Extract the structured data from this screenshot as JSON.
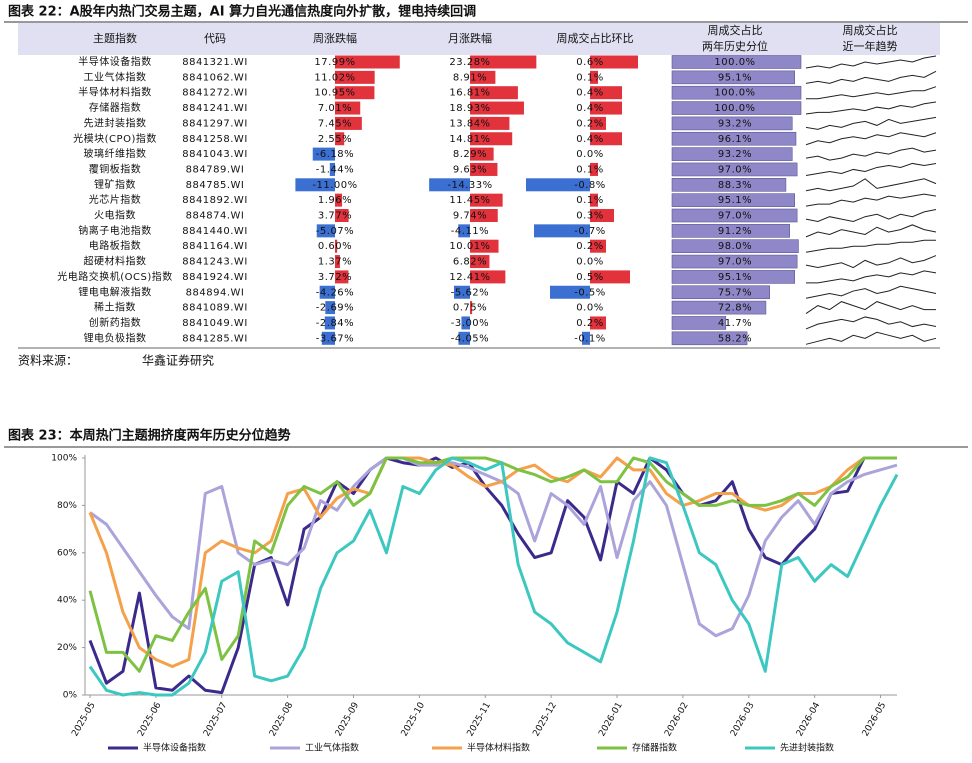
{
  "title": "图表 22：A股年内热门交易主题，AI 算力自光通信热度向外扩散，锂电持续回调",
  "table": {
    "columns": [
      [
        "主题指数"
      ],
      [
        "代码"
      ],
      [
        "周涨跌幅"
      ],
      [
        "月涨跌幅"
      ],
      [
        "周成交占比环比"
      ],
      [
        "周成交占比",
        "两年历史分位"
      ],
      [
        "周成交占比",
        "近一年趋势"
      ]
    ],
    "positive_color": "#e2323c",
    "negative_color": "#3b6fd1",
    "percentile_color": "#8f88c8",
    "trend_color": "#222222",
    "rows": [
      {
        "name": "半导体设备指数",
        "code": "8841321.WI",
        "week": 17.99,
        "week_label": "17.99%",
        "month": 23.28,
        "month_label": "23.28%",
        "turnover_change": 0.6,
        "turnover_change_label": "0.6%",
        "percentile": 100.0,
        "percentile_label": "100.0%",
        "trend": [
          3,
          4,
          3,
          5,
          4,
          6,
          5,
          6,
          7,
          6,
          8,
          9
        ]
      },
      {
        "name": "工业气体指数",
        "code": "8841062.WI",
        "week": 11.02,
        "week_label": "11.02%",
        "month": 8.91,
        "month_label": "8.91%",
        "turnover_change": 0.1,
        "turnover_change_label": "0.1%",
        "percentile": 95.1,
        "percentile_label": "95.1%",
        "trend": [
          2,
          3,
          2,
          4,
          3,
          5,
          4,
          3,
          5,
          6,
          5,
          8
        ]
      },
      {
        "name": "半导体材料指数",
        "code": "8841272.WI",
        "week": 10.95,
        "week_label": "10.95%",
        "month": 16.81,
        "month_label": "16.81%",
        "turnover_change": 0.4,
        "turnover_change_label": "0.4%",
        "percentile": 100.0,
        "percentile_label": "100.0%",
        "trend": [
          3,
          3,
          4,
          5,
          4,
          5,
          6,
          5,
          6,
          7,
          7,
          9
        ]
      },
      {
        "name": "存储器指数",
        "code": "8841241.WI",
        "week": 7.01,
        "week_label": "7.01%",
        "month": 18.93,
        "month_label": "18.93%",
        "turnover_change": 0.4,
        "turnover_change_label": "0.4%",
        "percentile": 100.0,
        "percentile_label": "100.0%",
        "trend": [
          2,
          3,
          3,
          4,
          5,
          4,
          6,
          5,
          7,
          6,
          8,
          9
        ]
      },
      {
        "name": "先进封装指数",
        "code": "8841297.WI",
        "week": 7.45,
        "week_label": "7.45%",
        "month": 13.84,
        "month_label": "13.84%",
        "turnover_change": 0.2,
        "turnover_change_label": "0.2%",
        "percentile": 93.2,
        "percentile_label": "93.2%",
        "trend": [
          3,
          2,
          4,
          3,
          5,
          6,
          4,
          7,
          5,
          6,
          7,
          8
        ]
      },
      {
        "name": "光模块(CPO)指数",
        "code": "8841258.WI",
        "week": 2.55,
        "week_label": "2.55%",
        "month": 14.81,
        "month_label": "14.81%",
        "turnover_change": 0.4,
        "turnover_change_label": "0.4%",
        "percentile": 96.1,
        "percentile_label": "96.1%",
        "trend": [
          2,
          4,
          3,
          5,
          6,
          5,
          7,
          6,
          8,
          7,
          6,
          8
        ]
      },
      {
        "name": "玻璃纤维指数",
        "code": "8841043.WI",
        "week": -6.18,
        "week_label": "-6.18%",
        "month": 8.29,
        "month_label": "8.29%",
        "turnover_change": 0.0,
        "turnover_change_label": "0.0%",
        "percentile": 93.2,
        "percentile_label": "93.2%",
        "trend": [
          3,
          4,
          2,
          3,
          5,
          4,
          6,
          5,
          7,
          8,
          6,
          7
        ]
      },
      {
        "name": "覆铜板指数",
        "code": "884789.WI",
        "week": -1.44,
        "week_label": "-1.44%",
        "month": 9.63,
        "month_label": "9.63%",
        "turnover_change": 0.1,
        "turnover_change_label": "0.1%",
        "percentile": 97.0,
        "percentile_label": "97.0%",
        "trend": [
          2,
          3,
          4,
          3,
          5,
          4,
          6,
          7,
          6,
          8,
          7,
          8
        ]
      },
      {
        "name": "锂矿指数",
        "code": "884785.WI",
        "week": -11.0,
        "week_label": "-11.00%",
        "month": -14.33,
        "month_label": "-14.33%",
        "turnover_change": -0.8,
        "turnover_change_label": "-0.8%",
        "percentile": 88.3,
        "percentile_label": "88.3%",
        "trend": [
          3,
          4,
          3,
          4,
          5,
          8,
          4,
          5,
          6,
          7,
          8,
          6
        ]
      },
      {
        "name": "光芯片指数",
        "code": "8841892.WI",
        "week": 1.96,
        "week_label": "1.96%",
        "month": 11.45,
        "month_label": "11.45%",
        "turnover_change": 0.1,
        "turnover_change_label": "0.1%",
        "percentile": 95.1,
        "percentile_label": "95.1%",
        "trend": [
          2,
          3,
          3,
          5,
          4,
          6,
          5,
          7,
          6,
          7,
          8,
          7
        ]
      },
      {
        "name": "火电指数",
        "code": "884874.WI",
        "week": 3.77,
        "week_label": "3.77%",
        "month": 9.74,
        "month_label": "9.74%",
        "turnover_change": 0.3,
        "turnover_change_label": "0.3%",
        "percentile": 97.0,
        "percentile_label": "97.0%",
        "trend": [
          4,
          3,
          5,
          4,
          3,
          5,
          6,
          4,
          6,
          5,
          7,
          8
        ]
      },
      {
        "name": "钠离子电池指数",
        "code": "8841440.WI",
        "week": -5.07,
        "week_label": "-5.07%",
        "month": -4.11,
        "month_label": "-4.11%",
        "turnover_change": -0.7,
        "turnover_change_label": "-0.7%",
        "percentile": 91.2,
        "percentile_label": "91.2%",
        "trend": [
          3,
          5,
          4,
          6,
          5,
          4,
          7,
          5,
          6,
          8,
          6,
          5
        ]
      },
      {
        "name": "电路板指数",
        "code": "8841164.WI",
        "week": 0.6,
        "week_label": "0.60%",
        "month": 10.01,
        "month_label": "10.01%",
        "turnover_change": 0.2,
        "turnover_change_label": "0.2%",
        "percentile": 98.0,
        "percentile_label": "98.0%",
        "trend": [
          2,
          3,
          4,
          4,
          5,
          5,
          6,
          6,
          7,
          7,
          8,
          8
        ]
      },
      {
        "name": "超硬材料指数",
        "code": "8841243.WI",
        "week": 1.37,
        "week_label": "1.37%",
        "month": 6.82,
        "month_label": "6.82%",
        "turnover_change": 0.0,
        "turnover_change_label": "0.0%",
        "percentile": 97.0,
        "percentile_label": "97.0%",
        "trend": [
          4,
          3,
          4,
          5,
          3,
          6,
          4,
          5,
          7,
          5,
          6,
          8
        ]
      },
      {
        "name": "光电路交换机(OCS)指数",
        "code": "8841924.WI",
        "week": 3.72,
        "week_label": "3.72%",
        "month": 12.41,
        "month_label": "12.41%",
        "turnover_change": 0.5,
        "turnover_change_label": "0.5%",
        "percentile": 95.1,
        "percentile_label": "95.1%",
        "trend": [
          2,
          2,
          3,
          4,
          3,
          5,
          6,
          5,
          7,
          6,
          8,
          7
        ]
      },
      {
        "name": "锂电电解液指数",
        "code": "884894.WI",
        "week": -4.26,
        "week_label": "-4.26%",
        "month": -5.62,
        "month_label": "-5.62%",
        "turnover_change": -0.5,
        "turnover_change_label": "-0.5%",
        "percentile": 75.7,
        "percentile_label": "75.7%",
        "trend": [
          3,
          4,
          5,
          4,
          6,
          7,
          5,
          6,
          8,
          7,
          6,
          5
        ]
      },
      {
        "name": "稀土指数",
        "code": "8841089.WI",
        "week": -2.69,
        "week_label": "-2.69%",
        "month": 0.75,
        "month_label": "0.75%",
        "turnover_change": 0.0,
        "turnover_change_label": "0.0%",
        "percentile": 72.8,
        "percentile_label": "72.8%",
        "trend": [
          4,
          6,
          5,
          7,
          6,
          5,
          7,
          6,
          5,
          6,
          5,
          5
        ]
      },
      {
        "name": "创新药指数",
        "code": "8841049.WI",
        "week": -2.84,
        "week_label": "-2.84%",
        "month": -3.0,
        "month_label": "-3.00%",
        "turnover_change": 0.2,
        "turnover_change_label": "0.2%",
        "percentile": 41.7,
        "percentile_label": "41.7%",
        "trend": [
          3,
          5,
          6,
          7,
          6,
          8,
          7,
          5,
          6,
          4,
          5,
          4
        ]
      },
      {
        "name": "锂电负极指数",
        "code": "8841285.WI",
        "week": -3.67,
        "week_label": "-3.67%",
        "month": -4.05,
        "month_label": "-4.05%",
        "turnover_change": -0.1,
        "turnover_change_label": "-0.1%",
        "percentile": 58.2,
        "percentile_label": "58.2%",
        "trend": [
          3,
          4,
          5,
          4,
          6,
          5,
          7,
          6,
          5,
          6,
          4,
          5
        ]
      }
    ],
    "source_label": "资料来源：",
    "source": "华鑫证券研究"
  },
  "chart_data": {
    "type": "line",
    "title": "图表 23：本周热门主题拥挤度两年历史分位趋势",
    "categories": [
      "2025-05",
      null,
      null,
      null,
      "2025-06",
      null,
      null,
      null,
      "2025-07",
      null,
      null,
      null,
      "2025-08",
      null,
      null,
      null,
      "2025-09",
      null,
      null,
      null,
      "2025-10",
      null,
      null,
      null,
      "2025-11",
      null,
      null,
      null,
      "2025-12",
      null,
      null,
      null,
      "2026-01",
      null,
      null,
      null,
      "2026-02",
      null,
      null,
      null,
      "2026-03",
      null,
      null,
      null,
      "2026-04",
      null,
      null,
      null,
      "2026-05",
      null
    ],
    "ylim": [
      0,
      100
    ],
    "yticks": [
      {
        "value": 0,
        "label": "0%"
      },
      {
        "value": 20,
        "label": "20%"
      },
      {
        "value": 40,
        "label": "40%"
      },
      {
        "value": 60,
        "label": "60%"
      },
      {
        "value": 80,
        "label": "80%"
      },
      {
        "value": 100,
        "label": "100%"
      }
    ],
    "series": [
      {
        "name": "半导体设备指数",
        "color": "#3b2a8c",
        "values": [
          23,
          5,
          10,
          43,
          3,
          2,
          8,
          2,
          1,
          20,
          55,
          58,
          38,
          70,
          75,
          90,
          85,
          95,
          100,
          98,
          97,
          100,
          96,
          98,
          88,
          80,
          68,
          58,
          60,
          82,
          75,
          57,
          90,
          85,
          100,
          95,
          85,
          80,
          82,
          90,
          70,
          58,
          55,
          63,
          70,
          85,
          86,
          100,
          100,
          100
        ]
      },
      {
        "name": "工业气体指数",
        "color": "#aaa4da",
        "values": [
          77,
          72,
          62,
          52,
          42,
          33,
          28,
          85,
          88,
          60,
          55,
          57,
          55,
          62,
          82,
          78,
          88,
          95,
          100,
          100,
          97,
          97,
          98,
          96,
          93,
          90,
          85,
          65,
          85,
          80,
          72,
          88,
          58,
          82,
          90,
          80,
          55,
          30,
          25,
          28,
          42,
          65,
          75,
          82,
          72,
          85,
          90,
          93,
          95,
          97
        ]
      },
      {
        "name": "半导体材料指数",
        "color": "#f5a04a",
        "values": [
          77,
          60,
          35,
          20,
          15,
          12,
          15,
          60,
          65,
          62,
          60,
          65,
          85,
          87,
          75,
          83,
          87,
          85,
          100,
          100,
          100,
          98,
          97,
          92,
          88,
          90,
          95,
          97,
          92,
          90,
          95,
          92,
          100,
          95,
          95,
          85,
          80,
          82,
          85,
          85,
          80,
          78,
          80,
          85,
          85,
          88,
          95,
          100,
          100,
          100
        ]
      },
      {
        "name": "存储器指数",
        "color": "#7dc242",
        "values": [
          44,
          18,
          18,
          10,
          25,
          23,
          35,
          45,
          15,
          25,
          65,
          60,
          80,
          88,
          85,
          90,
          80,
          85,
          100,
          100,
          98,
          98,
          100,
          100,
          100,
          98,
          95,
          93,
          90,
          92,
          95,
          90,
          90,
          100,
          98,
          90,
          85,
          80,
          80,
          82,
          80,
          80,
          82,
          85,
          80,
          88,
          92,
          100,
          100,
          100
        ]
      },
      {
        "name": "先进封装指数",
        "color": "#3cc8c0",
        "values": [
          12,
          2,
          0,
          1,
          0,
          0,
          5,
          18,
          48,
          52,
          8,
          6,
          8,
          20,
          45,
          60,
          65,
          78,
          60,
          88,
          85,
          95,
          100,
          98,
          95,
          98,
          55,
          35,
          30,
          22,
          18,
          14,
          35,
          65,
          100,
          98,
          80,
          60,
          55,
          40,
          30,
          10,
          55,
          58,
          48,
          55,
          50,
          65,
          80,
          93
        ]
      }
    ]
  }
}
